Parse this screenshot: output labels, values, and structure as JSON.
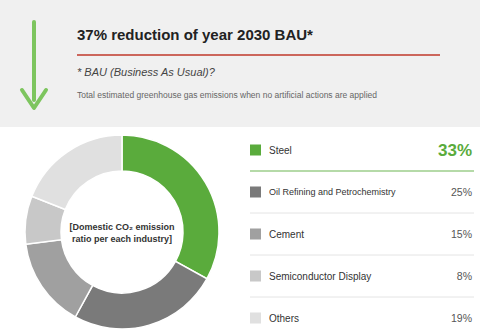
{
  "chart_data": {
    "type": "donut",
    "title": "37% reduction of year 2030 BAU*",
    "subtitle": "* BAU (Business As Usual)?",
    "annotations": [
      "Total estimated greenhouse gas emissions when no artificial actions are applied",
      "[Domestic CO₂ emission\nratio per each industry]"
    ],
    "categories": [
      "Steel",
      "Oil Refining and Petrochemistry",
      "Cement",
      "Semiconductor Display",
      "Others"
    ],
    "values": [
      33,
      25,
      15,
      8,
      19
    ],
    "value_labels": [
      "33%",
      "25%",
      "15%",
      "8%",
      "19%"
    ],
    "colors": [
      "#5aab3c",
      "#7a7a7a",
      "#a0a0a0",
      "#c8c8c8",
      "#e0e0e0"
    ],
    "legend": "right"
  }
}
